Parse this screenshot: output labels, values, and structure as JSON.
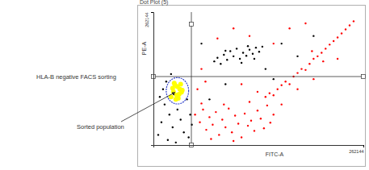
{
  "chart_data": {
    "type": "scatter",
    "title": "Dot Plot (5)",
    "x_label": "FITC-A",
    "y_label": "PE-A",
    "xlim": [
      0,
      262144
    ],
    "ylim": [
      0,
      262144
    ],
    "xticks": [
      262144
    ],
    "yticks": [
      262144
    ],
    "quadrant": {
      "x": 47400,
      "y": 135000
    },
    "sort_gate": {
      "cx": 30000,
      "cy": 107000,
      "rx": 14000,
      "ry": 26000,
      "color": "#3344cc"
    },
    "annotations": [
      "HLA-B negative FACS sorting",
      "Sorted population"
    ],
    "series": [
      {
        "color": "#ff0000",
        "marker": "circle",
        "x": [
          52000,
          58000,
          62000,
          66000,
          70000,
          74000,
          78000,
          82000,
          86000,
          90000,
          94000,
          98000,
          102000,
          106000,
          110000,
          114000,
          118000,
          122000,
          126000,
          130000,
          134000,
          138000,
          142000,
          146000,
          150000,
          60000,
          72000,
          88000,
          100000,
          120000,
          140000,
          145000,
          150000,
          155000,
          160000,
          165000,
          170000,
          175000,
          180000,
          185000,
          190000,
          195000,
          200000,
          205000,
          210000,
          215000,
          220000,
          225000,
          230000,
          235000,
          240000,
          245000,
          250000,
          198000,
          212000,
          60000,
          80000,
          100000,
          120000,
          150000,
          170000,
          190000,
          55000,
          65000,
          110000,
          130000,
          160000,
          180000,
          200000,
          230000
        ],
        "values": [
          60000,
          45000,
          70000,
          30000,
          55000,
          40000,
          65000,
          20000,
          50000,
          35000,
          72000,
          25000,
          58000,
          42000,
          15000,
          62000,
          38000,
          48000,
          28000,
          68000,
          52000,
          33000,
          78000,
          44000,
          60000,
          82000,
          12000,
          80000,
          8000,
          85000,
          95000,
          102000,
          98000,
          110000,
          118000,
          125000,
          120000,
          135000,
          142000,
          150000,
          148000,
          160000,
          170000,
          175000,
          182000,
          190000,
          198000,
          205000,
          212000,
          220000,
          228000,
          236000,
          244000,
          185000,
          165000,
          150000,
          210000,
          230000,
          215000,
          200000,
          230000,
          240000,
          110000,
          125000,
          120000,
          105000,
          80000,
          110000,
          130000,
          170000
        ]
      },
      {
        "color": "#000000",
        "marker": "circle",
        "x": [
          76000,
          80000,
          84000,
          88000,
          92000,
          96000,
          100000,
          104000,
          108000,
          112000,
          116000,
          120000,
          124000,
          128000,
          132000,
          136000,
          90000,
          110000,
          118000,
          126000,
          6000,
          10000,
          14000,
          18000,
          20000,
          24000,
          28000,
          30000,
          34000,
          38000,
          42000,
          44000,
          46000,
          12000,
          16000,
          8000,
          36000,
          22000,
          48000,
          26000,
          70000,
          90000,
          140000,
          160000,
          180000,
          60000,
          150000,
          200000
        ],
        "values": [
          165000,
          172000,
          160000,
          178000,
          168000,
          185000,
          175000,
          190000,
          170000,
          182000,
          176000,
          188000,
          180000,
          192000,
          184000,
          194000,
          186000,
          162000,
          195000,
          170000,
          20000,
          45000,
          80000,
          10000,
          60000,
          35000,
          5000,
          70000,
          50000,
          25000,
          90000,
          15000,
          60000,
          110000,
          125000,
          95000,
          110000,
          140000,
          40000,
          100000,
          90000,
          120000,
          150000,
          200000,
          175000,
          200000,
          130000,
          215000
        ]
      },
      {
        "color": "#ffff00",
        "marker": "large-circle",
        "x": [
          22000,
          25000,
          28000,
          30000,
          32000,
          34000,
          36000,
          26000,
          24000,
          29000,
          33000,
          27000,
          31000,
          35000
        ],
        "values": [
          95000,
          105000,
          90000,
          115000,
          100000,
          120000,
          108000,
          122000,
          112000,
          98000,
          110000,
          118000,
          92000,
          104000
        ]
      }
    ]
  }
}
